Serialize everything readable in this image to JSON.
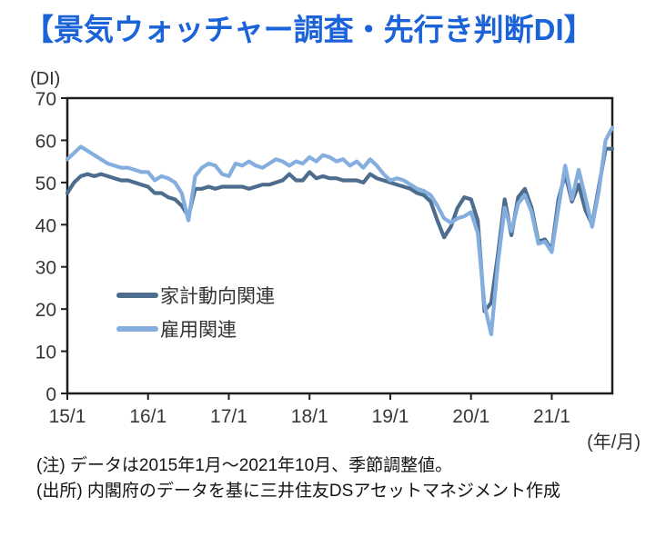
{
  "header": {
    "title": "【景気ウォッチャー調査・先行き判断DI】"
  },
  "chart_data": {
    "type": "line",
    "title": "【景気ウォッチャー調査・先行き判断DI】",
    "y_unit_label": "(DI)",
    "x_unit_label": "(年/月)",
    "ylim": [
      0,
      70
    ],
    "ytick_step": 10,
    "grid": false,
    "legend_position": "inside-lower-left",
    "x_range": "2015/1 - 2021/10 monthly",
    "x_tick_labels": [
      "15/1",
      "16/1",
      "17/1",
      "18/1",
      "19/1",
      "20/1",
      "21/1"
    ],
    "x_tick_month_index": [
      0,
      12,
      24,
      36,
      48,
      60,
      72
    ],
    "series": [
      {
        "name": "家計動向関連",
        "color": "#4d6d8f",
        "values": [
          47.5,
          50.0,
          51.5,
          52.0,
          51.5,
          52.0,
          51.5,
          51.0,
          50.5,
          50.5,
          50.0,
          49.5,
          49.0,
          47.5,
          47.5,
          46.5,
          46.0,
          44.5,
          42.0,
          48.5,
          48.5,
          49.0,
          48.5,
          49.0,
          49.0,
          49.0,
          49.0,
          48.5,
          49.0,
          49.5,
          49.5,
          50.0,
          50.5,
          52.0,
          50.5,
          50.5,
          52.5,
          51.0,
          51.5,
          51.0,
          51.0,
          50.5,
          50.5,
          50.5,
          50.0,
          52.0,
          51.0,
          50.5,
          50.0,
          49.5,
          49.0,
          48.5,
          47.5,
          47.0,
          45.5,
          41.0,
          37.0,
          39.5,
          44.0,
          46.5,
          46.0,
          41.0,
          19.5,
          21.5,
          33.0,
          46.0,
          37.5,
          46.5,
          48.5,
          44.0,
          36.0,
          36.5,
          34.0,
          46.0,
          52.0,
          45.5,
          49.5,
          43.5,
          40.0,
          49.0,
          58.0,
          58.0
        ]
      },
      {
        "name": "雇用関連",
        "color": "#84aede",
        "values": [
          55.5,
          57.0,
          58.5,
          57.5,
          56.5,
          55.5,
          54.5,
          54.0,
          53.5,
          53.5,
          53.0,
          52.5,
          52.5,
          50.5,
          51.5,
          51.0,
          50.0,
          47.5,
          41.0,
          51.5,
          53.5,
          54.5,
          54.0,
          52.0,
          51.5,
          54.5,
          54.0,
          55.0,
          54.0,
          53.5,
          54.5,
          55.5,
          55.0,
          54.0,
          55.0,
          54.5,
          56.0,
          55.0,
          56.5,
          56.0,
          55.0,
          55.5,
          54.0,
          55.0,
          53.5,
          55.5,
          54.0,
          52.0,
          50.5,
          51.0,
          50.5,
          49.5,
          48.5,
          48.0,
          47.0,
          44.5,
          41.5,
          40.5,
          41.5,
          42.0,
          43.0,
          38.0,
          21.0,
          14.0,
          31.0,
          44.0,
          38.5,
          45.0,
          47.0,
          43.0,
          35.5,
          36.0,
          33.5,
          44.0,
          54.0,
          46.0,
          53.0,
          46.5,
          39.5,
          48.0,
          60.0,
          63.0
        ]
      }
    ]
  },
  "notes": {
    "line1": "(注) データは2015年1月～2021年10月、季節調整値。",
    "line2": "(出所) 内閣府のデータを基に三井住友DSアセットマネジメント作成"
  }
}
